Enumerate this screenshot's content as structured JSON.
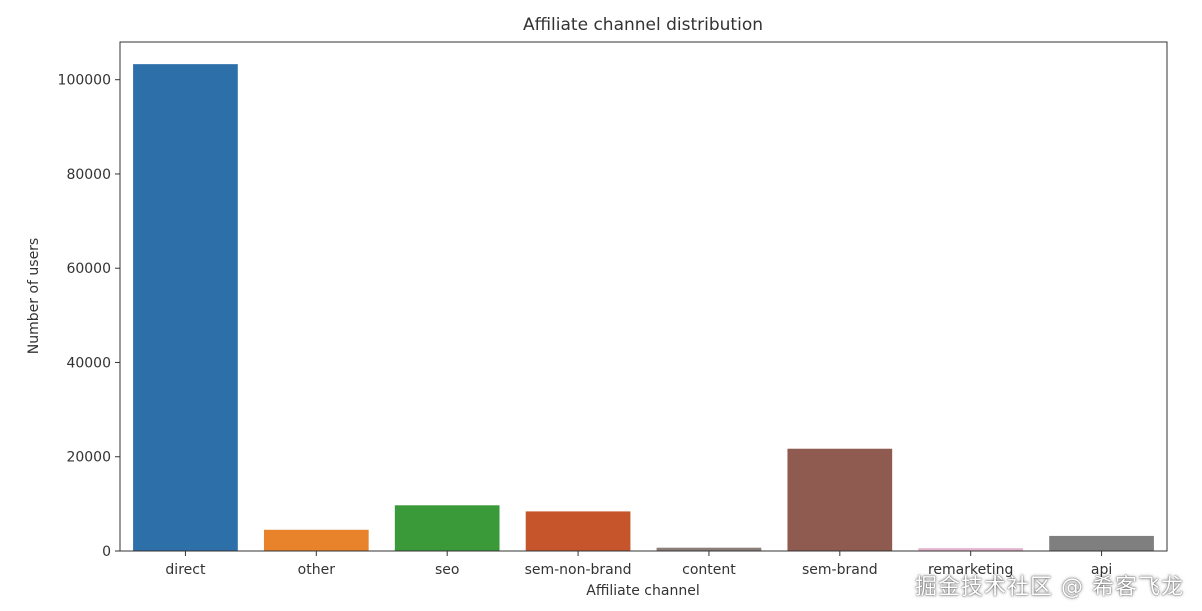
{
  "chart_data": {
    "type": "bar",
    "title": "Affiliate channel distribution",
    "xlabel": "Affiliate channel",
    "ylabel": "Number of users",
    "categories": [
      "direct",
      "other",
      "seo",
      "sem-non-brand",
      "content",
      "sem-brand",
      "remarketing",
      "api"
    ],
    "values": [
      103300,
      4500,
      9700,
      8400,
      700,
      21700,
      600,
      3200
    ],
    "ylim": [
      0,
      108000
    ],
    "yticks": [
      0,
      20000,
      40000,
      60000,
      80000,
      100000
    ],
    "grid": false,
    "colors": [
      "#2d6fa8",
      "#e8832b",
      "#3a9a3a",
      "#c6552b",
      "#8a7f78",
      "#8f5a4f",
      "#e3b4cb",
      "#7f7f7f"
    ]
  },
  "watermark": "掘金技术社区 @ 希客飞龙"
}
